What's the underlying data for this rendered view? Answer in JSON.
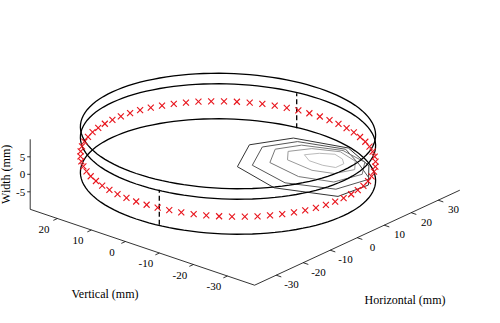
{
  "chart_data": {
    "type": "scatter3d",
    "x_label": "Horizontal (mm)",
    "y_label": "Vertical (mm)",
    "z_label": "Width (mm)",
    "xlim": [
      -38,
      38
    ],
    "ylim": [
      -38,
      28
    ],
    "zlim": [
      -10,
      10
    ],
    "xticks": [
      -30,
      -20,
      -10,
      0,
      10,
      20,
      30
    ],
    "yticks": [
      -30,
      -20,
      -10,
      0,
      10,
      20
    ],
    "zticks": [
      -5,
      0,
      5
    ],
    "grid": false,
    "rings": {
      "radius": 34,
      "widths": [
        8,
        5,
        -5
      ],
      "color": "#000000"
    },
    "dashed_lines": [
      {
        "horizontal": -33,
        "vertical": -6,
        "width": [
          -5,
          5
        ]
      },
      {
        "horizontal": 33,
        "vertical": 6,
        "width": [
          -5,
          5
        ]
      }
    ],
    "markers": {
      "radius": 34,
      "width": 0,
      "color": "#e8141c",
      "marker": "x",
      "angles": [
        0,
        5,
        10,
        15,
        20,
        25,
        30,
        35,
        40,
        45,
        50,
        55,
        60,
        65,
        70,
        75,
        80,
        85,
        90,
        95,
        100,
        105,
        110,
        115,
        120,
        125,
        130,
        135,
        140,
        145,
        150,
        155,
        160,
        165,
        170,
        175,
        180,
        185,
        190,
        195,
        200,
        205,
        210,
        215,
        220,
        225,
        230,
        235,
        240,
        245,
        250,
        255,
        260,
        265,
        270,
        275,
        280,
        285,
        290,
        295,
        300,
        305,
        310,
        315,
        320,
        325,
        330,
        335,
        340,
        345,
        350,
        355
      ]
    },
    "contours": {
      "width": -5,
      "levels": [
        {
          "color": "#333333",
          "points": [
            [
              32,
              -10
            ],
            [
              28,
              3
            ],
            [
              18,
              8
            ],
            [
              6,
              2
            ],
            [
              2,
              -12
            ],
            [
              8,
              -26
            ],
            [
              18,
              -27
            ],
            [
              27,
              -20
            ]
          ]
        },
        {
          "color": "#555555",
          "points": [
            [
              31,
              -10
            ],
            [
              27,
              1
            ],
            [
              19,
              5
            ],
            [
              9,
              0
            ],
            [
              6,
              -12
            ],
            [
              11,
              -23
            ],
            [
              21,
              -25
            ],
            [
              26,
              -18
            ]
          ]
        },
        {
          "color": "#777777",
          "points": [
            [
              30,
              -10
            ],
            [
              26,
              -1
            ],
            [
              20,
              2
            ],
            [
              13,
              -2
            ],
            [
              11,
              -12
            ],
            [
              14,
              -20
            ],
            [
              22,
              -22
            ],
            [
              28,
              -18
            ]
          ]
        },
        {
          "color": "#999999",
          "points": [
            [
              29,
              -10
            ],
            [
              26,
              -4
            ],
            [
              21,
              -1
            ],
            [
              17,
              -4
            ],
            [
              16,
              -12
            ],
            [
              18,
              -17
            ],
            [
              23,
              -19
            ],
            [
              27,
              -16
            ]
          ]
        },
        {
          "color": "#bbbbbb",
          "points": [
            [
              27,
              -10
            ],
            [
              25,
              -7
            ],
            [
              22,
              -5
            ],
            [
              20,
              -8
            ],
            [
              20,
              -12
            ],
            [
              21,
              -15
            ],
            [
              24,
              -15
            ],
            [
              26,
              -13
            ]
          ]
        }
      ]
    }
  }
}
